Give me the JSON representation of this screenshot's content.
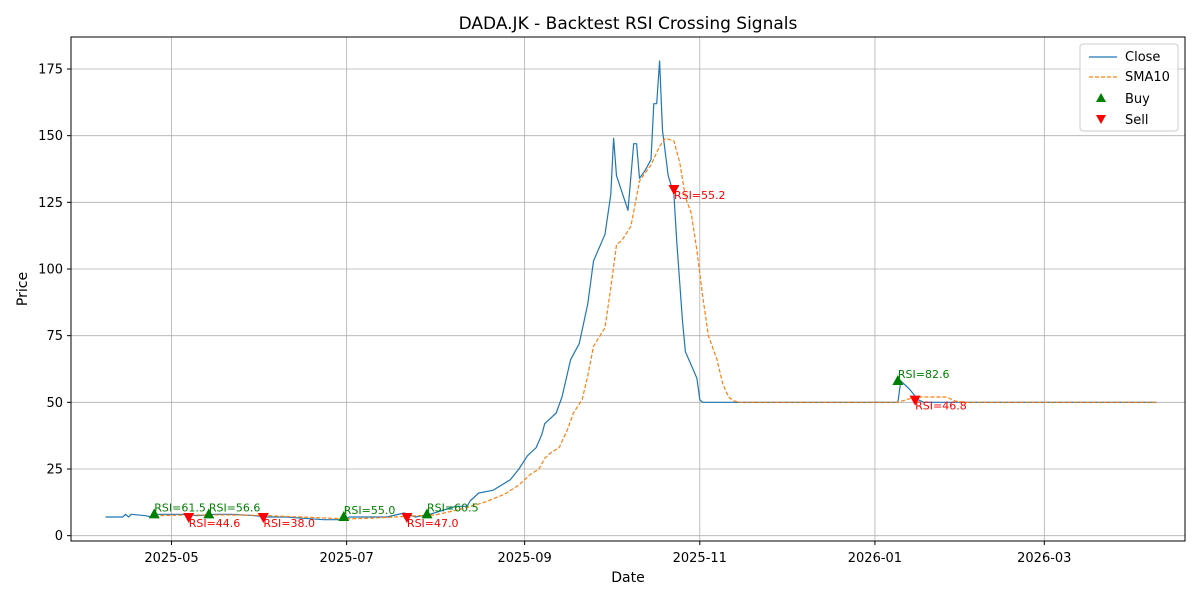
{
  "chart_data": {
    "type": "line",
    "title": "DADA.JK - Backtest RSI Crossing Signals",
    "xlabel": "Date",
    "ylabel": "Price",
    "xlim": [
      "2025-03-27",
      "2026-04-19"
    ],
    "ylim": [
      -2,
      187
    ],
    "x_ticks": [
      "2025-05-01",
      "2025-07-01",
      "2025-09-01",
      "2025-11-01",
      "2026-01-01",
      "2026-03-01"
    ],
    "x_tick_labels": [
      "2025-05",
      "2025-07",
      "2025-09",
      "2025-11",
      "2026-01",
      "2026-03"
    ],
    "y_ticks": [
      0,
      25,
      50,
      75,
      100,
      125,
      150,
      175
    ],
    "grid": true,
    "legend_position": "top-right",
    "colors": {
      "close": "#1f77b4",
      "sma": "#ff7f0e",
      "buy": "#008000",
      "sell": "#ff0000"
    },
    "series": [
      {
        "name": "Close",
        "style": "solid",
        "points": [
          [
            "2025-04-08",
            7
          ],
          [
            "2025-04-14",
            7
          ],
          [
            "2025-04-15",
            8
          ],
          [
            "2025-04-16",
            7
          ],
          [
            "2025-04-17",
            8
          ],
          [
            "2025-04-22",
            7.5
          ],
          [
            "2025-04-24",
            7
          ],
          [
            "2025-04-25",
            8
          ],
          [
            "2025-05-05",
            8
          ],
          [
            "2025-05-10",
            7.5
          ],
          [
            "2025-05-16",
            8
          ],
          [
            "2025-05-22",
            8
          ],
          [
            "2025-05-30",
            7.5
          ],
          [
            "2025-06-03",
            7
          ],
          [
            "2025-06-10",
            7
          ],
          [
            "2025-06-16",
            6.5
          ],
          [
            "2025-06-23",
            6
          ],
          [
            "2025-06-30",
            6
          ],
          [
            "2025-07-02",
            7
          ],
          [
            "2025-07-10",
            7
          ],
          [
            "2025-07-15",
            7
          ],
          [
            "2025-07-21",
            8.5
          ],
          [
            "2025-07-25",
            7
          ],
          [
            "2025-07-30",
            8
          ],
          [
            "2025-08-05",
            10
          ],
          [
            "2025-08-08",
            11
          ],
          [
            "2025-08-12",
            11
          ],
          [
            "2025-08-13",
            13
          ],
          [
            "2025-08-16",
            16
          ],
          [
            "2025-08-21",
            17
          ],
          [
            "2025-08-24",
            19
          ],
          [
            "2025-08-27",
            21
          ],
          [
            "2025-08-30",
            25
          ],
          [
            "2025-09-02",
            30
          ],
          [
            "2025-09-05",
            33
          ],
          [
            "2025-09-07",
            38
          ],
          [
            "2025-09-08",
            42
          ],
          [
            "2025-09-12",
            46
          ],
          [
            "2025-09-14",
            52
          ],
          [
            "2025-09-17",
            66
          ],
          [
            "2025-09-20",
            72
          ],
          [
            "2025-09-23",
            87
          ],
          [
            "2025-09-25",
            103
          ],
          [
            "2025-09-29",
            113
          ],
          [
            "2025-10-01",
            128
          ],
          [
            "2025-10-02",
            149
          ],
          [
            "2025-10-03",
            135
          ],
          [
            "2025-10-07",
            122
          ],
          [
            "2025-10-09",
            147
          ],
          [
            "2025-10-10",
            147
          ],
          [
            "2025-10-11",
            134
          ],
          [
            "2025-10-13",
            137
          ],
          [
            "2025-10-15",
            141
          ],
          [
            "2025-10-16",
            162
          ],
          [
            "2025-10-17",
            162
          ],
          [
            "2025-10-18",
            178
          ],
          [
            "2025-10-19",
            152
          ],
          [
            "2025-10-21",
            135
          ],
          [
            "2025-10-23",
            128
          ],
          [
            "2025-10-24",
            110
          ],
          [
            "2025-10-25",
            95
          ],
          [
            "2025-10-26",
            80
          ],
          [
            "2025-10-27",
            69
          ],
          [
            "2025-10-29",
            64
          ],
          [
            "2025-10-31",
            59
          ],
          [
            "2025-11-01",
            51
          ],
          [
            "2025-11-02",
            50
          ],
          [
            "2026-01-09",
            50
          ],
          [
            "2026-01-10",
            58
          ],
          [
            "2026-01-13",
            55
          ],
          [
            "2026-01-16",
            51
          ],
          [
            "2026-01-18",
            50
          ],
          [
            "2026-04-09",
            50
          ]
        ]
      },
      {
        "name": "SMA10",
        "style": "dashed",
        "points": [
          [
            "2025-04-25",
            7.5
          ],
          [
            "2025-05-05",
            7.7
          ],
          [
            "2025-05-20",
            7.8
          ],
          [
            "2025-06-01",
            7.6
          ],
          [
            "2025-06-15",
            7
          ],
          [
            "2025-07-01",
            6.3
          ],
          [
            "2025-07-10",
            6.6
          ],
          [
            "2025-07-21",
            7.2
          ],
          [
            "2025-08-01",
            7.8
          ],
          [
            "2025-08-10",
            10
          ],
          [
            "2025-08-18",
            12.5
          ],
          [
            "2025-08-25",
            15.5
          ],
          [
            "2025-08-30",
            19
          ],
          [
            "2025-09-03",
            23
          ],
          [
            "2025-09-06",
            25
          ],
          [
            "2025-09-08",
            29
          ],
          [
            "2025-09-10",
            31
          ],
          [
            "2025-09-13",
            33
          ],
          [
            "2025-09-16",
            40
          ],
          [
            "2025-09-18",
            46
          ],
          [
            "2025-09-21",
            51
          ],
          [
            "2025-09-23",
            60
          ],
          [
            "2025-09-25",
            71
          ],
          [
            "2025-09-29",
            78
          ],
          [
            "2025-10-01",
            93
          ],
          [
            "2025-10-03",
            109
          ],
          [
            "2025-10-05",
            111
          ],
          [
            "2025-10-08",
            116
          ],
          [
            "2025-10-11",
            133
          ],
          [
            "2025-10-13",
            136
          ],
          [
            "2025-10-15",
            139
          ],
          [
            "2025-10-18",
            146
          ],
          [
            "2025-10-20",
            149
          ],
          [
            "2025-10-23",
            148
          ],
          [
            "2025-10-25",
            140
          ],
          [
            "2025-10-27",
            127
          ],
          [
            "2025-10-29",
            121
          ],
          [
            "2025-10-31",
            107
          ],
          [
            "2025-11-02",
            90
          ],
          [
            "2025-11-04",
            75
          ],
          [
            "2025-11-07",
            66
          ],
          [
            "2025-11-09",
            57
          ],
          [
            "2025-11-11",
            52
          ],
          [
            "2025-11-13",
            50.5
          ],
          [
            "2025-11-15",
            50
          ],
          [
            "2026-01-09",
            50
          ],
          [
            "2026-01-12",
            51
          ],
          [
            "2026-01-15",
            52
          ],
          [
            "2026-01-26",
            52
          ],
          [
            "2026-01-29",
            50.5
          ],
          [
            "2026-02-01",
            50
          ],
          [
            "2026-04-09",
            50
          ]
        ]
      }
    ],
    "buy_signals": [
      {
        "date": "2025-04-25",
        "price": 8,
        "label": "RSI=61.5"
      },
      {
        "date": "2025-05-14",
        "price": 8,
        "label": "RSI=56.6"
      },
      {
        "date": "2025-06-30",
        "price": 7,
        "label": "RSI=55.0"
      },
      {
        "date": "2025-07-29",
        "price": 8,
        "label": "RSI=60.5"
      },
      {
        "date": "2026-01-09",
        "price": 58,
        "label": "RSI=82.6"
      }
    ],
    "sell_signals": [
      {
        "date": "2025-05-07",
        "price": 7,
        "label": "RSI=44.6"
      },
      {
        "date": "2025-06-02",
        "price": 7,
        "label": "RSI=38.0"
      },
      {
        "date": "2025-07-22",
        "price": 7,
        "label": "RSI=47.0"
      },
      {
        "date": "2025-10-23",
        "price": 130,
        "label": "RSI=55.2"
      },
      {
        "date": "2026-01-15",
        "price": 51,
        "label": "RSI=46.8"
      }
    ],
    "legend": [
      "Close",
      "SMA10",
      "Buy",
      "Sell"
    ]
  }
}
